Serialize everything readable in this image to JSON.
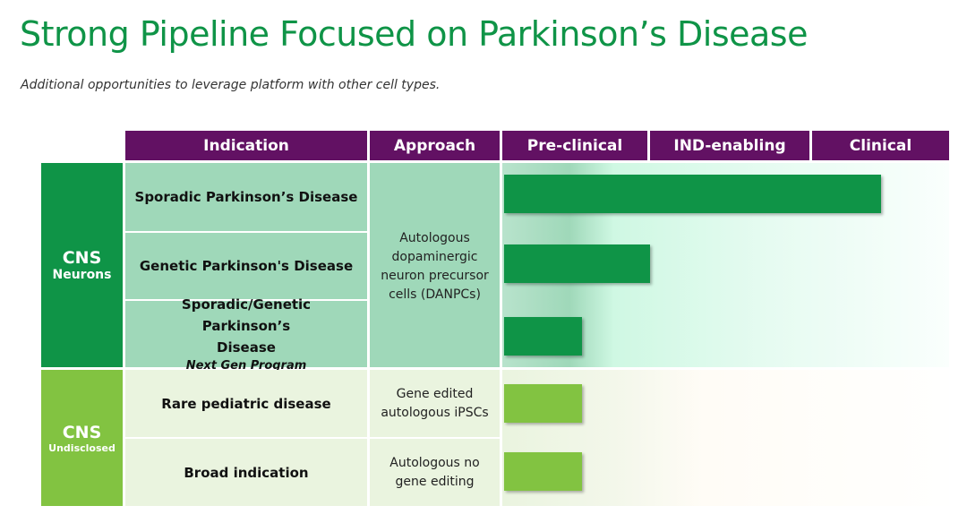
{
  "title": "Strong Pipeline Focused on Parkinson’s Disease",
  "subtitle": "Additional opportunities to leverage platform with other cell types.",
  "headers": {
    "indication": "Indication",
    "approach": "Approach"
  },
  "colors": {
    "header": "#621163",
    "neurons": "#0f9447",
    "undisclosed": "#82c341",
    "neurons_bg": "#9fd8b9",
    "undisclosed_bg": "#eaf4df"
  },
  "groups": [
    {
      "name": "CNS",
      "sub": "Neurons",
      "approach": "Autologous dopaminergic neuron precursor cells (DANPCs)"
    },
    {
      "name": "CNS",
      "sub": "Undisclosed"
    }
  ],
  "rows": [
    {
      "indication": "Sporadic Parkinson’s Disease"
    },
    {
      "indication": "Genetic Parkinson's Disease"
    },
    {
      "indication": "Sporadic/Genetic Parkinson’s Disease",
      "note": "Next Gen Program"
    },
    {
      "indication": "Rare pediatric disease",
      "approach": "Gene edited autologous iPSCs"
    },
    {
      "indication": "Broad indication",
      "approach": "Autologous no gene editing"
    }
  ],
  "chart_data": {
    "type": "bar",
    "orientation": "horizontal",
    "phases": [
      "Pre-clinical",
      "IND-enabling",
      "Clinical"
    ],
    "categories": [
      "Sporadic Parkinson’s Disease",
      "Genetic Parkinson's Disease",
      "Sporadic/Genetic Parkinson’s Disease (Next Gen Program)",
      "Rare pediatric disease",
      "Broad indication"
    ],
    "values_in_phases": [
      2.5,
      1.0,
      0.55,
      0.55,
      0.55
    ],
    "xlim": [
      0,
      3
    ],
    "bar_colors": [
      "#0f9447",
      "#0f9447",
      "#0f9447",
      "#82c341",
      "#82c341"
    ]
  }
}
